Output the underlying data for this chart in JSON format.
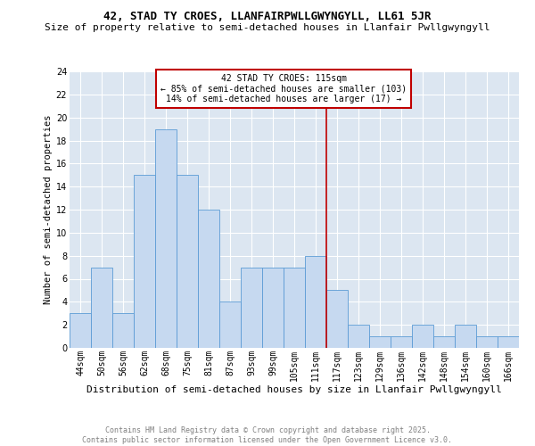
{
  "title": "42, STAD TY CROES, LLANFAIRPWLLGWYNGYLL, LL61 5JR",
  "subtitle": "Size of property relative to semi-detached houses in Llanfair Pwllgwyngyll",
  "xlabel": "Distribution of semi-detached houses by size in Llanfair Pwllgwyngyll",
  "ylabel": "Number of semi-detached properties",
  "categories": [
    "44sqm",
    "50sqm",
    "56sqm",
    "62sqm",
    "68sqm",
    "75sqm",
    "81sqm",
    "87sqm",
    "93sqm",
    "99sqm",
    "105sqm",
    "111sqm",
    "117sqm",
    "123sqm",
    "129sqm",
    "136sqm",
    "142sqm",
    "148sqm",
    "154sqm",
    "160sqm",
    "166sqm"
  ],
  "values": [
    3,
    7,
    3,
    15,
    19,
    15,
    12,
    4,
    7,
    7,
    7,
    8,
    5,
    2,
    1,
    1,
    2,
    1,
    2,
    1,
    1
  ],
  "bar_color": "#c6d9f0",
  "bar_edge_color": "#5b9bd5",
  "grid_color": "#ffffff",
  "bg_color": "#dce6f1",
  "ylim": [
    0,
    24
  ],
  "yticks": [
    0,
    2,
    4,
    6,
    8,
    10,
    12,
    14,
    16,
    18,
    20,
    22,
    24
  ],
  "annotation_text": "42 STAD TY CROES: 115sqm\n← 85% of semi-detached houses are smaller (103)\n14% of semi-detached houses are larger (17) →",
  "vline_index": 11.5,
  "vline_color": "#c00000",
  "annotation_box_color": "#c00000",
  "footer_text": "Contains HM Land Registry data © Crown copyright and database right 2025.\nContains public sector information licensed under the Open Government Licence v3.0.",
  "title_fontsize": 9,
  "subtitle_fontsize": 8,
  "xlabel_fontsize": 8,
  "ylabel_fontsize": 7.5,
  "annotation_fontsize": 7,
  "footer_fontsize": 6,
  "tick_fontsize": 7
}
